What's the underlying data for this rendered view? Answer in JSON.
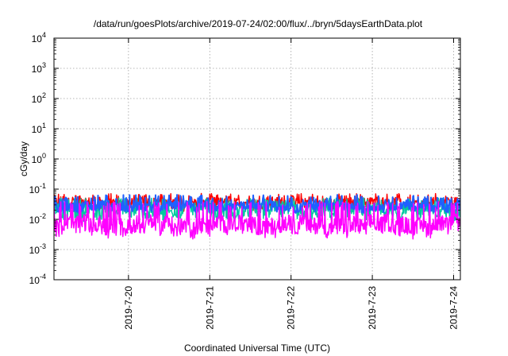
{
  "chart_data": {
    "type": "line",
    "title": "/data/run/goesPlots/archive/2019-07-24/02:00/flux/../bryn/5daysEarthData.plot",
    "xlabel": "Coordinated Universal Time (UTC)",
    "ylabel": "cGy/day",
    "yscale": "log",
    "ylim": [
      0.0001,
      10000
    ],
    "yticks": [
      {
        "value": 0.0001,
        "base": "10",
        "exp": "-4"
      },
      {
        "value": 0.001,
        "base": "10",
        "exp": "-3"
      },
      {
        "value": 0.01,
        "base": "10",
        "exp": "-2"
      },
      {
        "value": 0.1,
        "base": "10",
        "exp": "-1"
      },
      {
        "value": 1,
        "base": "10",
        "exp": "0"
      },
      {
        "value": 10,
        "base": "10",
        "exp": "1"
      },
      {
        "value": 100,
        "base": "10",
        "exp": "2"
      },
      {
        "value": 1000,
        "base": "10",
        "exp": "3"
      },
      {
        "value": 10000,
        "base": "10",
        "exp": "4"
      }
    ],
    "xlim": [
      "2019-07-19 02:00",
      "2019-07-24 02:00"
    ],
    "xticks": [
      {
        "value": "2019-07-20 00:00",
        "label": "2019-7-20"
      },
      {
        "value": "2019-07-21 00:00",
        "label": "2019-7-21"
      },
      {
        "value": "2019-07-22 00:00",
        "label": "2019-7-22"
      },
      {
        "value": "2019-07-23 00:00",
        "label": "2019-7-23"
      },
      {
        "value": "2019-07-24 00:00",
        "label": "2019-7-24"
      }
    ],
    "grid": true,
    "legend": "none",
    "series": [
      {
        "color": "#ff0000",
        "baseline": 0.034,
        "spread": 0.6,
        "spike": 0.055
      },
      {
        "color": "#00c8a0",
        "baseline": 0.018,
        "spread": 0.8,
        "spike": 0.04
      },
      {
        "color": "#2060ff",
        "baseline": 0.026,
        "spread": 0.5,
        "spike": 0.05
      },
      {
        "color": "#ff00ff",
        "baseline": 0.006,
        "spread": 1.0,
        "spike": 0.03
      }
    ]
  }
}
